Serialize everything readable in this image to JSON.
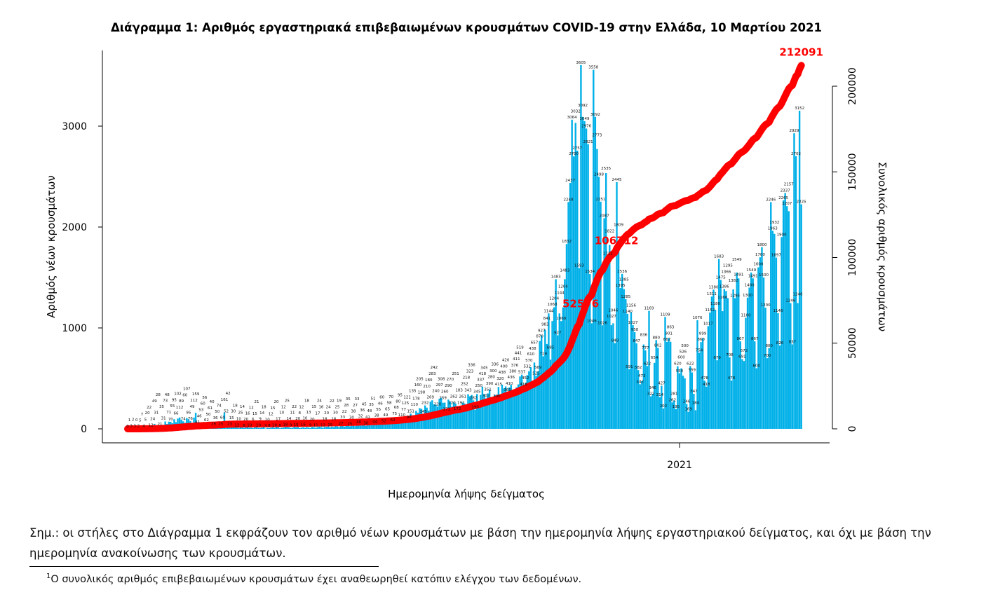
{
  "chart_data": {
    "type": "bar+line",
    "title": "Διάγραμμα 1: Αριθμός εργαστηριακά επιβεβαιωμένων κρουσμάτων COVID-19 στην Ελλάδα, 10 Μαρτίου 2021",
    "xlabel": "Ημερομηνία λήψης δείγματος",
    "ylabel": "Αριθμός νέων κρουσμάτων",
    "y2label": "Συνολικός αριθμός κρουσμάτων",
    "ylim": [
      0,
      3700
    ],
    "y2lim": [
      0,
      215000
    ],
    "yticks": [
      "0",
      "1000",
      "2000",
      "3000"
    ],
    "y2ticks": [
      "0",
      "50000",
      "100000",
      "150000",
      "200000"
    ],
    "xticks": [
      {
        "label": "2021",
        "day_index": 310
      }
    ],
    "bar_color": "#00b0e8",
    "line_color": "#ff0000",
    "cumulative_total": 212091,
    "cumulative_total_label": "212091",
    "cumulative_annotations": [
      {
        "label": "52576",
        "day_index": 256
      },
      {
        "label": "106712",
        "day_index": 276
      }
    ],
    "daily_new_cases": [
      0,
      1,
      3,
      2,
      3,
      0,
      2,
      5,
      7,
      4,
      5,
      20,
      22,
      12,
      24,
      49,
      31,
      28,
      21,
      35,
      31,
      73,
      48,
      71,
      70,
      55,
      95,
      66,
      102,
      112,
      89,
      74,
      60,
      107,
      95,
      76,
      49,
      112,
      159,
      41,
      46,
      53,
      60,
      56,
      62,
      50,
      61,
      40,
      26,
      36,
      50,
      74,
      25,
      60,
      161,
      52,
      42,
      23,
      15,
      30,
      18,
      12,
      10,
      25,
      14,
      8,
      20,
      16,
      10,
      12,
      6,
      15,
      21,
      10,
      9,
      14,
      18,
      3,
      10,
      8,
      12,
      15,
      10,
      20,
      17,
      6,
      10,
      12,
      18,
      25,
      14,
      9,
      11,
      22,
      15,
      20,
      8,
      12,
      16,
      10,
      18,
      13,
      9,
      20,
      15,
      11,
      17,
      24,
      16,
      12,
      18,
      20,
      24,
      15,
      22,
      18,
      30,
      25,
      19,
      27,
      33,
      22,
      28,
      35,
      25,
      30,
      38,
      27,
      33,
      40,
      32,
      36,
      45,
      30,
      41,
      48,
      35,
      51,
      44,
      38,
      55,
      46,
      60,
      52,
      49,
      65,
      58,
      70,
      62,
      75,
      68,
      80,
      95,
      110,
      77,
      125,
      121,
      90,
      151,
      135,
      110,
      178,
      160,
      205,
      198,
      145,
      232,
      210,
      180,
      269,
      283,
      242,
      240,
      220,
      297,
      308,
      259,
      260,
      171,
      290,
      270,
      220,
      262,
      251,
      172,
      183,
      192,
      261,
      252,
      218,
      343,
      323,
      336,
      282,
      190,
      345,
      250,
      337,
      418,
      345,
      302,
      351,
      390,
      280,
      300,
      336,
      300,
      415,
      320,
      438,
      400,
      420,
      360,
      410,
      436,
      380,
      376,
      411,
      441,
      519,
      537,
      418,
      452,
      532,
      570,
      610,
      438,
      657,
      525,
      569,
      870,
      927,
      719,
      983,
      841,
      1144,
      685,
      1068,
      1204,
      1483,
      927,
      1144,
      1068,
      1204,
      1483,
      1832,
      2248,
      2437,
      3064,
      2700,
      3032,
      2757,
      1593,
      3605,
      3092,
      3049,
      2976,
      2821,
      1534,
      1046,
      3558,
      3092,
      2773,
      2498,
      2251,
      1026,
      2087,
      2535,
      1712,
      1822,
      1027,
      1046,
      849,
      2445,
      1809,
      1395,
      1536,
      1385,
      1285,
      1140,
      591,
      1156,
      1027,
      958,
      847,
      582,
      442,
      473,
      836,
      777,
      622,
      1169,
      322,
      346,
      654,
      880,
      802,
      314,
      427,
      202,
      1109,
      862,
      901,
      863,
      262,
      281,
      195,
      620,
      550,
      600,
      526,
      500,
      246,
      169,
      622,
      559,
      347,
      184,
      1076,
      754,
      860,
      899,
      478,
      418,
      1017,
      1152,
      1311,
      1380,
      1180,
      679,
      1683,
      1475,
      1166,
      1386,
      1366,
      1295,
      708,
      478,
      1382,
      1295,
      1549,
      1491,
      867,
      691,
      672,
      1100,
      1300,
      1400,
      1549,
      1491,
      867,
      600,
      1600,
      1700,
      1800,
      1500,
      1200,
      700,
      800,
      2246,
      1963,
      1932,
      1697,
      1146,
      826,
      1900,
      2265,
      2337,
      2207,
      2157,
      1246,
      837,
      2929,
      2702,
      1246,
      3152,
      2225
    ]
  },
  "note": {
    "text": "Σημ.: οι στήλες στο Διάγραμμα 1 εκφράζουν τον αριθμό νέων κρουσμάτων με βάση την ημερομηνία λήψης εργαστηριακού δείγματος, και όχι με βάση την ημερομηνία ανακοίνωσης των κρουσμάτων.",
    "footnote_mark": "1",
    "footnote": "Ο συνολικός αριθμός επιβεβαιωμένων κρουσμάτων έχει αναθεωρηθεί κατόπιν ελέγχου των δεδομένων."
  }
}
